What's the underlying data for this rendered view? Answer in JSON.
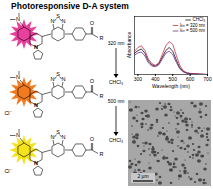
{
  "header": {
    "title": "Photoresponsive D-A system"
  },
  "scheme": {
    "atom_labels": {
      "amine": "N",
      "ring": "N",
      "thiadiazole": [
        "N",
        "S",
        "N"
      ],
      "carbonyl": "O",
      "substituent": "R"
    },
    "molecules": [
      {
        "color": "#e8409c",
        "counterion": null
      },
      {
        "color": "#f27b1f",
        "counterion": "Cl⁻"
      },
      {
        "color": "#f4e21c",
        "counterion": "Cl⁻"
      }
    ],
    "steps": [
      {
        "condition": "320 nm",
        "solvent": "CHCl₃"
      },
      {
        "condition": "500 nm",
        "solvent": "CHCl₃"
      }
    ]
  },
  "chart_data": {
    "type": "line",
    "xlabel": "Wavelength (nm)",
    "ylabel": "Absorbance",
    "x": [
      280,
      300,
      320,
      340,
      360,
      380,
      400,
      420,
      440,
      460,
      480,
      500,
      520,
      540,
      560,
      580,
      600,
      650,
      700
    ],
    "series": [
      {
        "name": "CHCl₃",
        "color": "#111111",
        "values": [
          0.55,
          0.62,
          0.66,
          0.55,
          0.35,
          0.25,
          0.22,
          0.28,
          0.45,
          0.62,
          0.7,
          0.6,
          0.38,
          0.18,
          0.08,
          0.04,
          0.02,
          0.01,
          0.0
        ]
      },
      {
        "name": "λᵢᵣᵣ = 320 nm",
        "color": "#c8324a",
        "values": [
          0.6,
          0.7,
          0.74,
          0.62,
          0.4,
          0.28,
          0.24,
          0.3,
          0.52,
          0.74,
          0.85,
          0.78,
          0.5,
          0.24,
          0.1,
          0.05,
          0.03,
          0.01,
          0.0
        ]
      },
      {
        "name": "λᵢᵣᵣ = 500 nm",
        "color": "#6a2d8a",
        "values": [
          0.5,
          0.56,
          0.58,
          0.48,
          0.3,
          0.22,
          0.2,
          0.25,
          0.4,
          0.55,
          0.6,
          0.52,
          0.32,
          0.15,
          0.07,
          0.03,
          0.02,
          0.01,
          0.0
        ]
      }
    ],
    "xlim": [
      280,
      700
    ],
    "xticks": [
      300,
      400,
      500,
      600,
      700
    ],
    "ylim": [
      0,
      1.5
    ],
    "tick_labels": "x",
    "legend": "top-right"
  },
  "image": {
    "scale_bar": "2 μm"
  }
}
